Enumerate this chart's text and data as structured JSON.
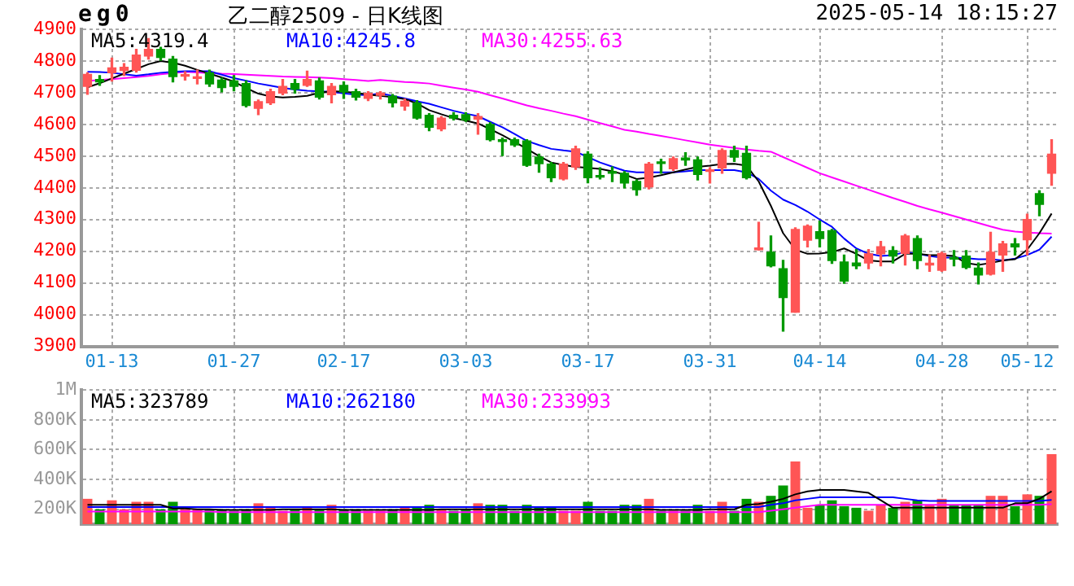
{
  "chart_data": [
    {
      "type": "candlestick",
      "title": "eg0",
      "subtitle": "乙二醇2509 - 日K线图",
      "annotations": [
        "2025-05-14 18:15:27"
      ],
      "categories": [
        null,
        null,
        "01-13",
        null,
        null,
        null,
        null,
        null,
        null,
        null,
        null,
        null,
        "01-27",
        null,
        null,
        null,
        null,
        null,
        null,
        null,
        null,
        "02-17",
        null,
        null,
        null,
        null,
        null,
        null,
        null,
        null,
        null,
        "03-03",
        null,
        null,
        null,
        null,
        null,
        null,
        null,
        null,
        null,
        "03-17",
        null,
        null,
        null,
        null,
        null,
        null,
        null,
        null,
        null,
        "03-31",
        null,
        null,
        null,
        null,
        null,
        null,
        null,
        null,
        "04-14",
        null,
        null,
        null,
        null,
        null,
        null,
        null,
        null,
        null,
        "04-28",
        null,
        null,
        null,
        null,
        null,
        null,
        "05-12",
        null,
        null
      ],
      "ohlc": [
        [
          4720,
          4763,
          4695,
          4758
        ],
        [
          4742,
          4754,
          4723,
          4734
        ],
        [
          4763,
          4809,
          4737,
          4778
        ],
        [
          4770,
          4792,
          4754,
          4780
        ],
        [
          4771,
          4837,
          4765,
          4819
        ],
        [
          4816,
          4871,
          4806,
          4837
        ],
        [
          4837,
          4843,
          4802,
          4811
        ],
        [
          4806,
          4814,
          4734,
          4751
        ],
        [
          4752,
          4766,
          4740,
          4755
        ],
        [
          4745,
          4771,
          4728,
          4748
        ],
        [
          4763,
          4771,
          4720,
          4728
        ],
        [
          4740,
          4746,
          4703,
          4716
        ],
        [
          4737,
          4754,
          4706,
          4720
        ],
        [
          4729,
          4737,
          4655,
          4660
        ],
        [
          4651,
          4677,
          4631,
          4672
        ],
        [
          4668,
          4711,
          4663,
          4703
        ],
        [
          4699,
          4742,
          4694,
          4720
        ],
        [
          4729,
          4742,
          4699,
          4711
        ],
        [
          4723,
          4768,
          4720,
          4742
        ],
        [
          4737,
          4746,
          4680,
          4686
        ],
        [
          4694,
          4729,
          4668,
          4720
        ],
        [
          4723,
          4734,
          4682,
          4703
        ],
        [
          4703,
          4711,
          4677,
          4686
        ],
        [
          4682,
          4703,
          4675,
          4698
        ],
        [
          4692,
          4703,
          4680,
          4699
        ],
        [
          4689,
          4694,
          4655,
          4668
        ],
        [
          4658,
          4680,
          4645,
          4673
        ],
        [
          4668,
          4675,
          4617,
          4620
        ],
        [
          4629,
          4634,
          4580,
          4591
        ],
        [
          4586,
          4625,
          4580,
          4620
        ],
        [
          4629,
          4637,
          4614,
          4620
        ],
        [
          4631,
          4637,
          4610,
          4614
        ],
        [
          4617,
          4634,
          4569,
          4625
        ],
        [
          4600,
          4606,
          4548,
          4552
        ],
        [
          4552,
          4557,
          4502,
          4546
        ],
        [
          4552,
          4557,
          4531,
          4535
        ],
        [
          4548,
          4552,
          4468,
          4471
        ],
        [
          4497,
          4506,
          4449,
          4476
        ],
        [
          4475,
          4480,
          4420,
          4432
        ],
        [
          4428,
          4480,
          4425,
          4475
        ],
        [
          4466,
          4531,
          4458,
          4523
        ],
        [
          4506,
          4514,
          4416,
          4432
        ],
        [
          4437,
          4463,
          4428,
          4434
        ],
        [
          4451,
          4466,
          4420,
          4446
        ],
        [
          4446,
          4451,
          4400,
          4415
        ],
        [
          4420,
          4425,
          4377,
          4394
        ],
        [
          4403,
          4480,
          4397,
          4475
        ],
        [
          4480,
          4490,
          4446,
          4477
        ],
        [
          4460,
          4497,
          4455,
          4492
        ],
        [
          4494,
          4511,
          4471,
          4488
        ],
        [
          4488,
          4497,
          4425,
          4442
        ],
        [
          4452,
          4463,
          4415,
          4454
        ],
        [
          4463,
          4523,
          4446,
          4518
        ],
        [
          4518,
          4531,
          4483,
          4497
        ],
        [
          4509,
          4531,
          4428,
          4432
        ],
        [
          4205,
          4291,
          4204,
          4210
        ],
        [
          4197,
          4248,
          4151,
          4154
        ],
        [
          4145,
          4171,
          3948,
          4054
        ],
        [
          4008,
          4274,
          4008,
          4269
        ],
        [
          4235,
          4283,
          4214,
          4279
        ],
        [
          4262,
          4295,
          4214,
          4240
        ],
        [
          4265,
          4269,
          4162,
          4171
        ],
        [
          4166,
          4188,
          4099,
          4106
        ],
        [
          4163,
          4205,
          4145,
          4154
        ],
        [
          4163,
          4205,
          4145,
          4192
        ],
        [
          4192,
          4231,
          4154,
          4214
        ],
        [
          4202,
          4214,
          4163,
          4185
        ],
        [
          4193,
          4253,
          4157,
          4248
        ],
        [
          4240,
          4248,
          4145,
          4171
        ],
        [
          4157,
          4188,
          4137,
          4160
        ],
        [
          4140,
          4197,
          4137,
          4193
        ],
        [
          4178,
          4202,
          4154,
          4175
        ],
        [
          4185,
          4202,
          4145,
          4149
        ],
        [
          4147,
          4163,
          4097,
          4125
        ],
        [
          4128,
          4260,
          4125,
          4197
        ],
        [
          4188,
          4231,
          4137,
          4223
        ],
        [
          4223,
          4240,
          4188,
          4214
        ],
        [
          4236,
          4317,
          4188,
          4300
        ],
        [
          4382,
          4391,
          4312,
          4348
        ],
        [
          4446,
          4552,
          4408,
          4506
        ]
      ],
      "colors": [
        "#ff5555",
        "#009900",
        "#ff5555",
        "#ff5555",
        "#ff5555",
        "#ff5555",
        "#009900",
        "#009900",
        "#ff5555",
        "#ff5555",
        "#009900",
        "#009900",
        "#009900",
        "#009900",
        "#ff5555",
        "#ff5555",
        "#ff5555",
        "#009900",
        "#ff5555",
        "#009900",
        "#ff5555",
        "#009900",
        "#009900",
        "#ff5555",
        "#ff5555",
        "#009900",
        "#ff5555",
        "#009900",
        "#009900",
        "#ff5555",
        "#009900",
        "#009900",
        "#ff5555",
        "#009900",
        "#009900",
        "#009900",
        "#009900",
        "#009900",
        "#009900",
        "#ff5555",
        "#ff5555",
        "#009900",
        "#009900",
        "#009900",
        "#009900",
        "#009900",
        "#ff5555",
        "#009900",
        "#ff5555",
        "#009900",
        "#009900",
        "#ff5555",
        "#ff5555",
        "#009900",
        "#009900",
        "#ff5555",
        "#009900",
        "#009900",
        "#ff5555",
        "#ff5555",
        "#009900",
        "#009900",
        "#009900",
        "#009900",
        "#ff5555",
        "#ff5555",
        "#009900",
        "#ff5555",
        "#009900",
        "#ff5555",
        "#ff5555",
        "#009900",
        "#009900",
        "#009900",
        "#ff5555",
        "#ff5555",
        "#009900",
        "#ff5555",
        "#009900",
        "#ff5555"
      ],
      "series": [
        {
          "name": "MA5:4319.4",
          "type": "line",
          "color": "#000000",
          "values": [
            4717,
            4730,
            4745,
            4760,
            4775,
            4790,
            4800,
            4795,
            4785,
            4772,
            4760,
            4748,
            4735,
            4715,
            4697,
            4688,
            4685,
            4687,
            4690,
            4700,
            4705,
            4703,
            4700,
            4694,
            4690,
            4686,
            4680,
            4666,
            4645,
            4632,
            4620,
            4612,
            4603,
            4585,
            4566,
            4545,
            4523,
            4500,
            4480,
            4472,
            4466,
            4463,
            4460,
            4452,
            4442,
            4428,
            4432,
            4440,
            4449,
            4458,
            4466,
            4470,
            4475,
            4476,
            4470,
            4420,
            4343,
            4257,
            4205,
            4192,
            4193,
            4197,
            4209,
            4192,
            4171,
            4168,
            4168,
            4192,
            4192,
            4188,
            4188,
            4185,
            4163,
            4157,
            4163,
            4171,
            4175,
            4205,
            4257,
            4319
          ]
        },
        {
          "name": "MA10:4245.8",
          "type": "line",
          "color": "#0000ff",
          "values": [
            4766,
            4765,
            4763,
            4758,
            4754,
            4758,
            4763,
            4766,
            4768,
            4768,
            4768,
            4757,
            4746,
            4738,
            4729,
            4722,
            4715,
            4710,
            4706,
            4704,
            4703,
            4698,
            4694,
            4692,
            4698,
            4690,
            4682,
            4673,
            4665,
            4654,
            4643,
            4634,
            4626,
            4608,
            4591,
            4570,
            4548,
            4535,
            4523,
            4518,
            4514,
            4497,
            4480,
            4467,
            4454,
            4449,
            4449,
            4449,
            4449,
            4452,
            4456,
            4456,
            4456,
            4456,
            4449,
            4428,
            4391,
            4363,
            4346,
            4325,
            4300,
            4277,
            4240,
            4209,
            4192,
            4185,
            4188,
            4197,
            4192,
            4185,
            4180,
            4180,
            4178,
            4175,
            4175,
            4171,
            4177,
            4188,
            4205,
            4246
          ]
        },
        {
          "name": "MA30:4255.63",
          "type": "line",
          "color": "#ff00ff",
          "values": [
            4737,
            4740,
            4743,
            4746,
            4749,
            4753,
            4758,
            4762,
            4766,
            4764,
            4762,
            4760,
            4759,
            4757,
            4755,
            4753,
            4751,
            4750,
            4749,
            4748,
            4746,
            4743,
            4740,
            4737,
            4740,
            4737,
            4734,
            4732,
            4729,
            4722,
            4716,
            4710,
            4703,
            4692,
            4682,
            4671,
            4660,
            4651,
            4643,
            4634,
            4626,
            4615,
            4604,
            4594,
            4583,
            4577,
            4570,
            4564,
            4557,
            4550,
            4543,
            4536,
            4531,
            4526,
            4521,
            4517,
            4514,
            4497,
            4480,
            4463,
            4446,
            4433,
            4420,
            4407,
            4394,
            4381,
            4368,
            4356,
            4343,
            4332,
            4322,
            4311,
            4300,
            4289,
            4278,
            4268,
            4262,
            4259,
            4257,
            4256
          ]
        }
      ],
      "ylim": [
        3900,
        4900
      ],
      "yticks": [
        3900,
        4000,
        4100,
        4200,
        4300,
        4400,
        4500,
        4600,
        4700,
        4800,
        4900
      ],
      "grid": true,
      "legend": "top left"
    },
    {
      "type": "bar",
      "categories": [
        null,
        null,
        null,
        null,
        null,
        null,
        null,
        null,
        null,
        null,
        null,
        null,
        null,
        null,
        null,
        null,
        null,
        null,
        null,
        null,
        null,
        null,
        null,
        null,
        null,
        null,
        null,
        null,
        null,
        null,
        null,
        null,
        null,
        null,
        null,
        null,
        null,
        null,
        null,
        null,
        null,
        null,
        null,
        null,
        null,
        null,
        null,
        null,
        null,
        null,
        null,
        null,
        null,
        null,
        null,
        null,
        null,
        null,
        null,
        null,
        null,
        null,
        null,
        null,
        null,
        null,
        null,
        null,
        null,
        null,
        null,
        null,
        null,
        null,
        null,
        null,
        null,
        null,
        null,
        null
      ],
      "series": [
        {
          "type": "bar",
          "colors": [
            "#ff5555",
            "#009900",
            "#ff5555",
            "#ff5555",
            "#ff5555",
            "#ff5555",
            "#009900",
            "#009900",
            "#ff5555",
            "#ff5555",
            "#009900",
            "#009900",
            "#009900",
            "#009900",
            "#ff5555",
            "#ff5555",
            "#ff5555",
            "#009900",
            "#ff5555",
            "#009900",
            "#ff5555",
            "#009900",
            "#009900",
            "#ff5555",
            "#ff5555",
            "#009900",
            "#ff5555",
            "#009900",
            "#009900",
            "#ff5555",
            "#009900",
            "#009900",
            "#ff5555",
            "#009900",
            "#009900",
            "#009900",
            "#009900",
            "#009900",
            "#009900",
            "#ff5555",
            "#ff5555",
            "#009900",
            "#009900",
            "#009900",
            "#009900",
            "#009900",
            "#ff5555",
            "#009900",
            "#ff5555",
            "#009900",
            "#009900",
            "#ff5555",
            "#ff5555",
            "#009900",
            "#009900",
            "#ff5555",
            "#009900",
            "#009900",
            "#ff5555",
            "#ff5555",
            "#009900",
            "#009900",
            "#009900",
            "#009900",
            "#ff5555",
            "#ff5555",
            "#009900",
            "#ff5555",
            "#009900",
            "#ff5555",
            "#ff5555",
            "#009900",
            "#009900",
            "#009900",
            "#ff5555",
            "#ff5555",
            "#009900",
            "#ff5555",
            "#009900",
            "#ff5555"
          ],
          "values": [
            270000,
            200000,
            260000,
            200000,
            250000,
            250000,
            200000,
            250000,
            200000,
            200000,
            200000,
            200000,
            190000,
            200000,
            240000,
            210000,
            190000,
            200000,
            220000,
            200000,
            230000,
            200000,
            200000,
            190000,
            190000,
            200000,
            220000,
            220000,
            230000,
            200000,
            190000,
            200000,
            240000,
            230000,
            230000,
            190000,
            230000,
            210000,
            220000,
            190000,
            190000,
            250000,
            190000,
            190000,
            230000,
            230000,
            270000,
            190000,
            190000,
            190000,
            230000,
            190000,
            250000,
            190000,
            270000,
            250000,
            290000,
            360000,
            520000,
            210000,
            230000,
            260000,
            220000,
            210000,
            190000,
            230000,
            210000,
            250000,
            260000,
            230000,
            270000,
            230000,
            230000,
            230000,
            290000,
            290000,
            220000,
            300000,
            290000,
            570000
          ]
        },
        {
          "name": "MA5:323789",
          "type": "line",
          "color": "#000000",
          "values": [
            230000,
            230000,
            230000,
            230000,
            230000,
            230000,
            230000,
            205000,
            205000,
            200000,
            200000,
            195000,
            195000,
            195000,
            195000,
            195000,
            200000,
            200000,
            200000,
            200000,
            200000,
            195000,
            195000,
            195000,
            195000,
            195000,
            195000,
            195000,
            195000,
            200000,
            200000,
            200000,
            200000,
            200000,
            200000,
            200000,
            200000,
            200000,
            200000,
            200000,
            200000,
            200000,
            200000,
            200000,
            200000,
            200000,
            200000,
            195000,
            195000,
            195000,
            195000,
            200000,
            200000,
            200000,
            230000,
            235000,
            250000,
            270000,
            300000,
            320000,
            330000,
            330000,
            330000,
            320000,
            310000,
            260000,
            210000,
            210000,
            210000,
            210000,
            210000,
            210000,
            210000,
            210000,
            210000,
            210000,
            240000,
            240000,
            270000,
            320000
          ]
        },
        {
          "name": "MA10:262180",
          "type": "line",
          "color": "#0000ff",
          "values": [
            215000,
            215000,
            215000,
            215000,
            215000,
            215000,
            215000,
            215000,
            215000,
            215000,
            215000,
            215000,
            215000,
            215000,
            215000,
            215000,
            215000,
            215000,
            215000,
            215000,
            215000,
            215000,
            215000,
            215000,
            215000,
            215000,
            215000,
            215000,
            215000,
            215000,
            215000,
            215000,
            215000,
            215000,
            215000,
            215000,
            215000,
            215000,
            215000,
            215000,
            215000,
            215000,
            215000,
            215000,
            215000,
            215000,
            215000,
            215000,
            215000,
            215000,
            215000,
            215000,
            215000,
            215000,
            215000,
            215000,
            230000,
            240000,
            260000,
            270000,
            280000,
            280000,
            280000,
            280000,
            280000,
            280000,
            280000,
            270000,
            260000,
            255000,
            255000,
            255000,
            255000,
            255000,
            255000,
            255000,
            255000,
            255000,
            255000,
            262000
          ]
        },
        {
          "name": "MA30:233993",
          "type": "line",
          "color": "#ff00ff",
          "values": [
            185000,
            185000,
            185000,
            185000,
            185000,
            185000,
            185000,
            185000,
            185000,
            185000,
            185000,
            180000,
            180000,
            180000,
            180000,
            180000,
            180000,
            180000,
            180000,
            180000,
            180000,
            180000,
            180000,
            180000,
            180000,
            180000,
            180000,
            180000,
            180000,
            180000,
            180000,
            180000,
            180000,
            180000,
            180000,
            180000,
            180000,
            180000,
            180000,
            180000,
            180000,
            180000,
            180000,
            180000,
            180000,
            180000,
            180000,
            180000,
            180000,
            180000,
            180000,
            180000,
            180000,
            180000,
            180000,
            180000,
            190000,
            200000,
            210000,
            220000,
            230000,
            230000,
            230000,
            230000,
            230000,
            230000,
            230000,
            230000,
            230000,
            230000,
            230000,
            230000,
            230000,
            230000,
            230000,
            230000,
            230000,
            230000,
            230000,
            234000
          ]
        }
      ],
      "ylim": [
        100000,
        1000000
      ],
      "yticks": [
        {
          "value": 200000,
          "label": "200K"
        },
        {
          "value": 400000,
          "label": "400K"
        },
        {
          "value": 600000,
          "label": "600K"
        },
        {
          "value": 800000,
          "label": "800K"
        },
        {
          "value": 1000000,
          "label": "1M"
        }
      ],
      "grid": true,
      "legend": "top left",
      "tick_labels": "y"
    }
  ]
}
